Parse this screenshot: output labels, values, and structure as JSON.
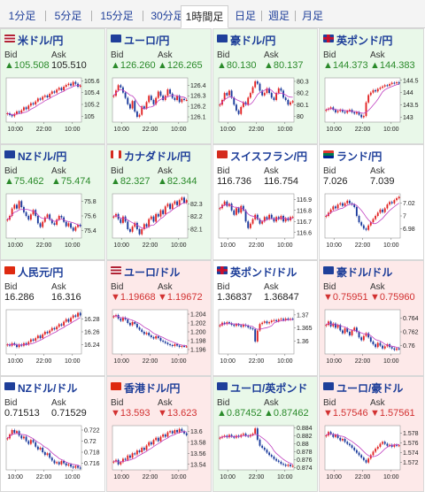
{
  "tabs": [
    {
      "label": "1分足",
      "active": false
    },
    {
      "label": "5分足",
      "active": false
    },
    {
      "label": "15分足",
      "active": false
    },
    {
      "label": "30分足",
      "active": false
    },
    {
      "label": "1時間足",
      "active": true
    },
    {
      "label": "日足",
      "active": false
    },
    {
      "label": "週足",
      "active": false
    },
    {
      "label": "月足",
      "active": false
    }
  ],
  "colors": {
    "up": "#2a8a2a",
    "down": "#d23030",
    "title": "#1b3c98",
    "ma": "#c040c0",
    "candle_up": "#e22222",
    "candle_down": "#1a3a9c"
  },
  "bid_label": "Bid",
  "ask_label": "Ask",
  "pairs": [
    {
      "name": "米ドル/円",
      "flag": "us-flag-icon",
      "trend": "up",
      "bid": "▲105.508",
      "ask": "105.510",
      "chart_data": {
        "type": "candlestick",
        "x_labels": [
          "10:00",
          "22:00",
          "10:00"
        ],
        "y_ticks": [
          "105.6",
          "105.4",
          "105.2",
          "105"
        ],
        "ylim": [
          104.9,
          105.65
        ],
        "closes": [
          105.05,
          105.02,
          105.0,
          105.04,
          105.08,
          105.06,
          105.1,
          105.15,
          105.12,
          105.18,
          105.22,
          105.2,
          105.25,
          105.3,
          105.28,
          105.33,
          105.35,
          105.32,
          105.38,
          105.42,
          105.4,
          105.45,
          105.48,
          105.44,
          105.5,
          105.53,
          105.55,
          105.52,
          105.58,
          105.55,
          105.5,
          105.52
        ]
      }
    },
    {
      "name": "ユーロ/円",
      "flag": "eu-flag-icon",
      "trend": "up",
      "bid": "▲126.260",
      "ask": "▲126.265",
      "chart_data": {
        "type": "candlestick",
        "x_labels": [
          "10:00",
          "22:00",
          "10:00"
        ],
        "y_ticks": [
          "126.4",
          "126.3",
          "126.2",
          "126.1"
        ],
        "ylim": [
          126.05,
          126.47
        ],
        "closes": [
          126.3,
          126.35,
          126.4,
          126.38,
          126.33,
          126.28,
          126.22,
          126.18,
          126.25,
          126.15,
          126.1,
          126.12,
          126.2,
          126.18,
          126.24,
          126.3,
          126.26,
          126.22,
          126.28,
          126.34,
          126.3,
          126.26,
          126.3,
          126.36,
          126.32,
          126.28,
          126.26,
          126.3,
          126.24,
          126.27,
          126.26,
          126.26
        ]
      }
    },
    {
      "name": "豪ドル/円",
      "flag": "au-flag-icon",
      "trend": "up",
      "bid": "▲80.130",
      "ask": "▲80.137",
      "chart_data": {
        "type": "candlestick",
        "x_labels": [
          "10:00",
          "22:00",
          "10:00"
        ],
        "y_ticks": [
          "80.3",
          "80.2",
          "80.1",
          "80"
        ],
        "ylim": [
          79.95,
          80.33
        ],
        "closes": [
          80.1,
          80.14,
          80.2,
          80.18,
          80.22,
          80.16,
          80.1,
          80.05,
          80.02,
          80.08,
          80.12,
          80.1,
          80.16,
          80.2,
          80.25,
          80.3,
          80.28,
          80.22,
          80.18,
          80.2,
          80.24,
          80.2,
          80.16,
          80.14,
          80.2,
          80.24,
          80.22,
          80.16,
          80.14,
          80.1,
          80.12,
          80.13
        ]
      }
    },
    {
      "name": "英ポンド/円",
      "flag": "gb-flag-icon",
      "trend": "up",
      "bid": "▲144.373",
      "ask": "▲144.383",
      "chart_data": {
        "type": "candlestick",
        "x_labels": [
          "10:00",
          "22:00",
          "10:00"
        ],
        "y_ticks": [
          "144.5",
          "144",
          "143.5",
          "143"
        ],
        "ylim": [
          142.8,
          144.6
        ],
        "closes": [
          143.3,
          143.35,
          143.4,
          143.3,
          143.2,
          143.25,
          143.3,
          143.22,
          143.18,
          143.25,
          143.3,
          143.2,
          143.15,
          143.2,
          143.1,
          143.0,
          143.05,
          143.6,
          143.9,
          144.0,
          144.1,
          144.05,
          144.15,
          144.2,
          144.25,
          144.3,
          144.28,
          144.35,
          144.4,
          144.38,
          144.42,
          144.37
        ]
      }
    },
    {
      "name": "NZドル/円",
      "flag": "nz-flag-icon",
      "trend": "up",
      "bid": "▲75.462",
      "ask": "▲75.474",
      "chart_data": {
        "type": "candlestick",
        "x_labels": [
          "10:00",
          "22:00",
          "10:00"
        ],
        "y_ticks": [
          "75.8",
          "75.6",
          "75.4"
        ],
        "ylim": [
          75.3,
          75.9
        ],
        "closes": [
          75.55,
          75.6,
          75.7,
          75.75,
          75.7,
          75.8,
          75.72,
          75.65,
          75.6,
          75.55,
          75.62,
          75.68,
          75.6,
          75.5,
          75.45,
          75.52,
          75.58,
          75.62,
          75.55,
          75.5,
          75.48,
          75.55,
          75.6,
          75.58,
          75.52,
          75.46,
          75.5,
          75.44,
          75.4,
          75.45,
          75.48,
          75.46
        ]
      }
    },
    {
      "name": "カナダドル/円",
      "flag": "ca-flag-icon",
      "trend": "up",
      "bid": "▲82.327",
      "ask": "▲82.344",
      "chart_data": {
        "type": "candlestick",
        "x_labels": [
          "10:00",
          "22:00",
          "10:00"
        ],
        "y_ticks": [
          "82.3",
          "82.2",
          "82.1"
        ],
        "ylim": [
          82.03,
          82.38
        ],
        "closes": [
          82.2,
          82.22,
          82.18,
          82.15,
          82.2,
          82.16,
          82.1,
          82.08,
          82.12,
          82.15,
          82.1,
          82.06,
          82.1,
          82.14,
          82.12,
          82.18,
          82.2,
          82.16,
          82.22,
          82.2,
          82.25,
          82.22,
          82.28,
          82.3,
          82.26,
          82.3,
          82.32,
          82.29,
          82.33,
          82.35,
          82.31,
          82.33
        ]
      }
    },
    {
      "name": "スイスフラン/円",
      "flag": "ch-flag-icon",
      "trend": "neutral",
      "bid": "116.736",
      "ask": "116.754",
      "chart_data": {
        "type": "candlestick",
        "x_labels": [
          "10:00",
          "22:00",
          "10:00"
        ],
        "y_ticks": [
          "116.9",
          "116.8",
          "116.7",
          "116.6"
        ],
        "ylim": [
          116.55,
          116.95
        ],
        "closes": [
          116.82,
          116.85,
          116.88,
          116.84,
          116.86,
          116.8,
          116.76,
          116.82,
          116.78,
          116.84,
          116.8,
          116.7,
          116.64,
          116.68,
          116.72,
          116.76,
          116.72,
          116.68,
          116.7,
          116.74,
          116.72,
          116.76,
          116.73,
          116.7,
          116.74,
          116.72,
          116.75,
          116.7,
          116.73,
          116.71,
          116.74,
          116.74
        ]
      }
    },
    {
      "name": "ランド/円",
      "flag": "za-flag-icon",
      "trend": "neutral",
      "bid": "7.026",
      "ask": "7.039",
      "chart_data": {
        "type": "candlestick",
        "x_labels": [
          "10:00",
          "22:00",
          "10:00"
        ],
        "y_ticks": [
          "7.02",
          "7",
          "6.98"
        ],
        "ylim": [
          6.965,
          7.035
        ],
        "closes": [
          7.0,
          7.005,
          7.01,
          7.015,
          7.012,
          7.018,
          7.02,
          7.016,
          7.02,
          7.024,
          7.02,
          7.018,
          7.014,
          7.0,
          6.99,
          6.985,
          6.98,
          6.978,
          6.985,
          6.99,
          6.995,
          7.0,
          7.005,
          7.01,
          7.006,
          7.012,
          7.018,
          7.022,
          7.02,
          7.025,
          7.028,
          7.03
        ]
      }
    },
    {
      "name": "人民元/円",
      "flag": "cn-flag-icon",
      "trend": "neutral",
      "bid": "16.286",
      "ask": "16.316",
      "chart_data": {
        "type": "candlestick",
        "x_labels": [
          "10:00",
          "22:00",
          "10:00"
        ],
        "y_ticks": [
          "16.28",
          "16.26",
          "16.24"
        ],
        "ylim": [
          16.225,
          16.295
        ],
        "closes": [
          16.24,
          16.238,
          16.242,
          16.24,
          16.236,
          16.24,
          16.238,
          16.242,
          16.24,
          16.244,
          16.248,
          16.246,
          16.25,
          16.254,
          16.25,
          16.256,
          16.26,
          16.258,
          16.262,
          16.266,
          16.264,
          16.268,
          16.272,
          16.27,
          16.276,
          16.28,
          16.276,
          16.282,
          16.286,
          16.284,
          16.29,
          16.286
        ]
      }
    },
    {
      "name": "ユーロ/ドル",
      "flag": "us-flag-icon",
      "trend": "down",
      "bid": "▼1.19668",
      "ask": "▼1.19672",
      "chart_data": {
        "type": "candlestick",
        "x_labels": [
          "10:00",
          "22:00",
          "10:00"
        ],
        "y_ticks": [
          "1.204",
          "1.202",
          "1.200",
          "1.198",
          "1.196"
        ],
        "ylim": [
          1.195,
          1.205
        ],
        "closes": [
          1.2035,
          1.2038,
          1.203,
          1.2025,
          1.2032,
          1.2028,
          1.202,
          1.2015,
          1.2022,
          1.2018,
          1.201,
          1.2005,
          1.2,
          1.1995,
          1.1998,
          1.1992,
          1.1988,
          1.1985,
          1.199,
          1.1986,
          1.198,
          1.1978,
          1.1975,
          1.1972,
          1.197,
          1.1968,
          1.1972,
          1.1969,
          1.1966,
          1.1968,
          1.1967,
          1.1967
        ]
      }
    },
    {
      "name": "英ポンド/ドル",
      "flag": "gb-flag-icon",
      "trend": "neutral",
      "bid": "1.36837",
      "ask": "1.36847",
      "chart_data": {
        "type": "candlestick",
        "x_labels": [
          "10:00",
          "22:00",
          "10:00"
        ],
        "y_ticks": [
          "1.37",
          "1.365",
          "1.36"
        ],
        "ylim": [
          1.355,
          1.372
        ],
        "closes": [
          1.366,
          1.367,
          1.3665,
          1.3672,
          1.3668,
          1.3662,
          1.3658,
          1.3664,
          1.366,
          1.3655,
          1.3662,
          1.3658,
          1.3652,
          1.3648,
          1.3645,
          1.3598,
          1.364,
          1.3665,
          1.367,
          1.3675,
          1.3668,
          1.3672,
          1.3678,
          1.368,
          1.3676,
          1.3682,
          1.3685,
          1.368,
          1.3686,
          1.3682,
          1.3685,
          1.3684
        ]
      }
    },
    {
      "name": "豪ドル/ドル",
      "flag": "au-flag-icon",
      "trend": "down",
      "bid": "▼0.75951",
      "ask": "▼0.75960",
      "chart_data": {
        "type": "candlestick",
        "x_labels": [
          "10:00",
          "22:00",
          "10:00"
        ],
        "y_ticks": [
          "0.764",
          "0.762",
          "0.76"
        ],
        "ylim": [
          0.7588,
          0.7652
        ],
        "closes": [
          0.763,
          0.7635,
          0.7628,
          0.7632,
          0.7626,
          0.763,
          0.7622,
          0.7618,
          0.7625,
          0.762,
          0.7615,
          0.7622,
          0.7626,
          0.762,
          0.7612,
          0.7608,
          0.7614,
          0.7618,
          0.7612,
          0.7606,
          0.7602,
          0.7598,
          0.7604,
          0.76,
          0.7596,
          0.7599,
          0.7602,
          0.7598,
          0.7596,
          0.7594,
          0.7596,
          0.7595
        ]
      }
    },
    {
      "name": "NZドル/ドル",
      "flag": "nz-flag-icon",
      "trend": "neutral",
      "bid": "0.71513",
      "ask": "0.71529",
      "chart_data": {
        "type": "candlestick",
        "x_labels": [
          "10:00",
          "22:00",
          "10:00"
        ],
        "y_ticks": [
          "0.722",
          "0.72",
          "0.718",
          "0.716"
        ],
        "ylim": [
          0.7148,
          0.7228
        ],
        "closes": [
          0.7205,
          0.7212,
          0.722,
          0.7215,
          0.7218,
          0.721,
          0.7205,
          0.7208,
          0.72,
          0.7195,
          0.7202,
          0.7198,
          0.719,
          0.7185,
          0.7188,
          0.718,
          0.7175,
          0.7178,
          0.717,
          0.7165,
          0.716,
          0.7162,
          0.7158,
          0.7164,
          0.716,
          0.7156,
          0.7158,
          0.7154,
          0.7152,
          0.7155,
          0.7152,
          0.7151
        ]
      }
    },
    {
      "name": "香港ドル/円",
      "flag": "hk-flag-icon",
      "trend": "down",
      "bid": "▼13.593",
      "ask": "▼13.623",
      "chart_data": {
        "type": "candlestick",
        "x_labels": [
          "10:00",
          "22:00",
          "10:00"
        ],
        "y_ticks": [
          "13.6",
          "13.58",
          "13.56",
          "13.54"
        ],
        "ylim": [
          13.53,
          13.61
        ],
        "closes": [
          13.545,
          13.548,
          13.54,
          13.544,
          13.55,
          13.548,
          13.556,
          13.552,
          13.56,
          13.558,
          13.565,
          13.562,
          13.57,
          13.566,
          13.574,
          13.58,
          13.576,
          13.584,
          13.588,
          13.582,
          13.59,
          13.594,
          13.59,
          13.598,
          13.6,
          13.596,
          13.602,
          13.598,
          13.604,
          13.6,
          13.596,
          13.593
        ]
      }
    },
    {
      "name": "ユーロ/英ポンド",
      "flag": "eu-flag-icon",
      "trend": "up",
      "bid": "▲0.87452",
      "ask": "▲0.87462",
      "chart_data": {
        "type": "candlestick",
        "x_labels": [
          "10:00",
          "22:00",
          "10:00"
        ],
        "y_ticks": [
          "0.884",
          "0.882",
          "0.88",
          "0.878",
          "0.876",
          "0.874"
        ],
        "ylim": [
          0.8735,
          0.8845
        ],
        "closes": [
          0.8815,
          0.8818,
          0.882,
          0.8816,
          0.8822,
          0.8818,
          0.8815,
          0.882,
          0.8817,
          0.8822,
          0.8825,
          0.882,
          0.8818,
          0.8822,
          0.8825,
          0.8838,
          0.881,
          0.8795,
          0.879,
          0.8785,
          0.8778,
          0.8772,
          0.8768,
          0.8762,
          0.8758,
          0.8755,
          0.875,
          0.8748,
          0.8745,
          0.8748,
          0.8744,
          0.8745
        ]
      }
    },
    {
      "name": "ユーロ/豪ドル",
      "flag": "eu-flag-icon",
      "trend": "down",
      "bid": "▼1.57546",
      "ask": "▼1.57561",
      "chart_data": {
        "type": "candlestick",
        "x_labels": [
          "10:00",
          "22:00",
          "10:00"
        ],
        "y_ticks": [
          "1.578",
          "1.576",
          "1.574",
          "1.572"
        ],
        "ylim": [
          1.5705,
          1.5795
        ],
        "closes": [
          1.5775,
          1.5782,
          1.5778,
          1.5772,
          1.5776,
          1.577,
          1.5765,
          1.5768,
          1.5762,
          1.5758,
          1.5755,
          1.575,
          1.5745,
          1.574,
          1.5735,
          1.573,
          1.5725,
          1.572,
          1.5728,
          1.5735,
          1.5742,
          1.5748,
          1.5752,
          1.5758,
          1.5762,
          1.5758,
          1.5754,
          1.5756,
          1.5752,
          1.5756,
          1.5754,
          1.5755
        ]
      }
    }
  ]
}
